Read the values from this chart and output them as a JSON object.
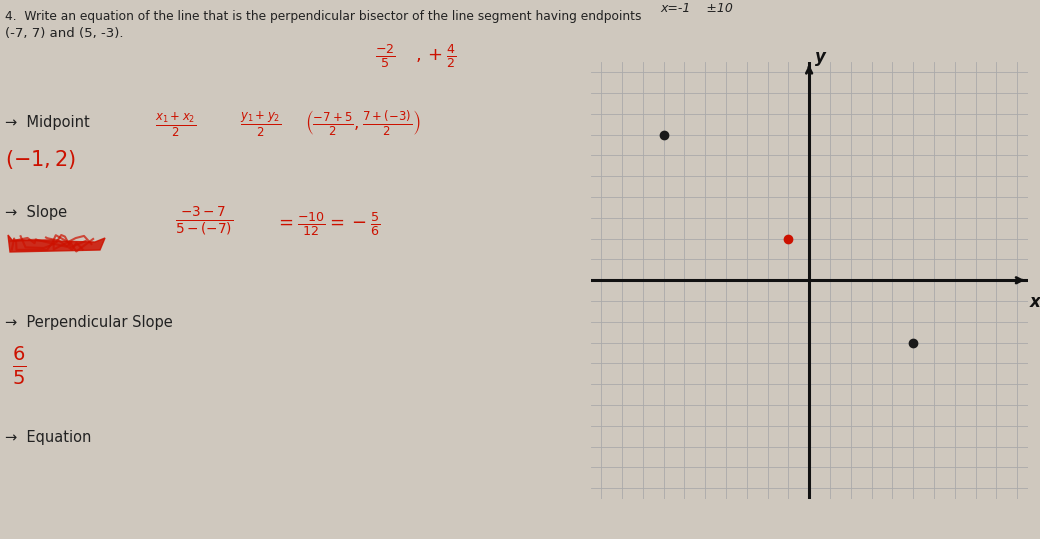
{
  "bg_color": "#cfc8be",
  "title_line1": "4.  Write an equation of the line that is the perpendicular bisector of the line segment having endpoints",
  "title_line2": "(-7, 7) and (5, -3).",
  "top_handwritten": "x=-1    ±10",
  "midpoint_label": "→  Midpoint",
  "slope_label": "→  Slope",
  "perp_slope_label": "→  Perpendicular Slope",
  "equation_label": "→  Equation",
  "grid_color": "#aaaaaa",
  "axis_color": "#111111",
  "point1": [
    -7,
    7
  ],
  "point2": [
    5,
    -3
  ],
  "midpoint_pt": [
    -1,
    2
  ],
  "grid_xlim": [
    -10,
    10
  ],
  "grid_ylim": [
    -10,
    10
  ],
  "dot_color_black": "#1a1a1a",
  "dot_color_red": "#cc1100",
  "red_ink": "#cc1100",
  "black_ink": "#222222",
  "fig_width": 10.4,
  "fig_height": 5.39,
  "dpi": 100
}
